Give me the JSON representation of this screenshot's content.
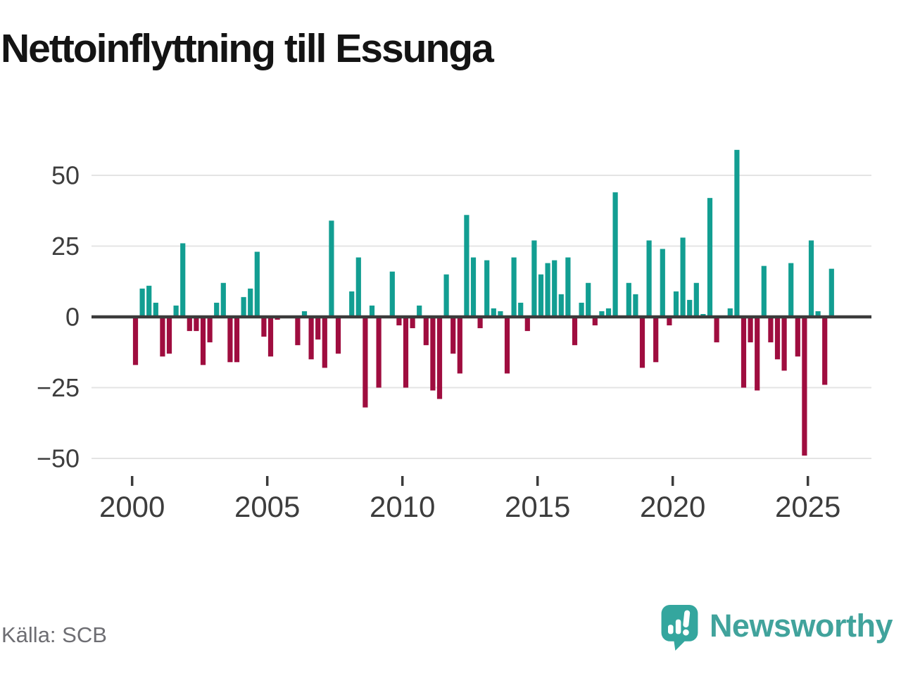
{
  "title": "Nettoinflyttning till Essunga",
  "source": "Källa: SCB",
  "brand": {
    "name": "Newsworthy",
    "icon": "newsworthy-bubble-chart-icon",
    "bubble_color": "#34a69e",
    "text_color": "#41a39c"
  },
  "chart_data": {
    "type": "bar",
    "title": "Nettoinflyttning till Essunga",
    "description": "Quarterly net migration to Essunga municipality, 4 bars per year",
    "x_start_year": 2000,
    "periods_per_year": 4,
    "values": [
      -17,
      10,
      11,
      5,
      -14,
      -13,
      4,
      26,
      -5,
      -5,
      -17,
      -9,
      5,
      12,
      -16,
      -16,
      7,
      10,
      23,
      -7,
      -14,
      -1,
      0,
      0,
      -10,
      2,
      -15,
      -8,
      -18,
      34,
      -13,
      0,
      9,
      21,
      -32,
      4,
      -25,
      0,
      16,
      -3,
      -25,
      -4,
      4,
      -10,
      -26,
      -29,
      15,
      -13,
      -20,
      36,
      21,
      -4,
      20,
      3,
      2,
      -20,
      21,
      5,
      -5,
      27,
      15,
      19,
      20,
      8,
      21,
      -10,
      5,
      12,
      -3,
      2,
      3,
      44,
      0,
      12,
      8,
      -18,
      27,
      -16,
      24,
      -3,
      9,
      28,
      6,
      12,
      1,
      42,
      -9,
      0,
      3,
      59,
      -25,
      -9,
      -26,
      18,
      -9,
      -15,
      -19,
      19,
      -14,
      -49,
      27,
      2,
      -24,
      17
    ],
    "x_tick_labels": [
      "2000",
      "2005",
      "2010",
      "2015",
      "2020",
      "2025"
    ],
    "y_tick_labels": [
      "50",
      "25",
      "0",
      "−25",
      "−50"
    ],
    "y_tick_values": [
      50,
      25,
      0,
      -25,
      -50
    ],
    "ylim": [
      -55,
      62
    ],
    "grid": true,
    "legend": false,
    "positive_color": "#129e92",
    "negative_color": "#9f0d3f",
    "grid_color": "#e4e4e4",
    "zero_line_color": "#3b3b3b",
    "axis_text_color": "#3d3d3d"
  }
}
